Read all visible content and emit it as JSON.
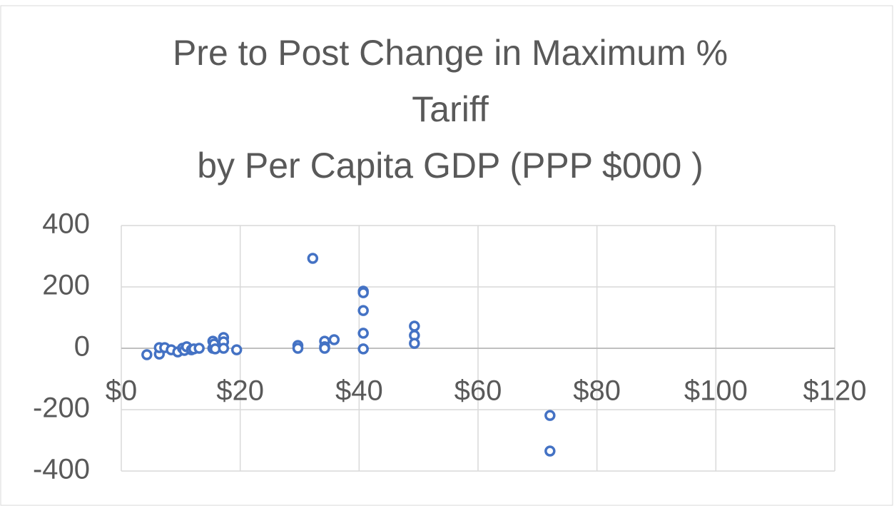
{
  "chart_data": {
    "type": "scatter",
    "title": [
      "Pre to Post Change in Maximum %",
      "Tariff",
      "by Per Capita GDP (PPP $000 )"
    ],
    "color": "#4472c4",
    "grid": true,
    "x": [
      4.3,
      6.4,
      6.4,
      7.3,
      8.4,
      9.5,
      10.3,
      10.6,
      11,
      11.8,
      12.2,
      13.1,
      15.4,
      15.4,
      15.6,
      15.8,
      17.2,
      17.2,
      17.2,
      19.4,
      29.7,
      29.7,
      32.2,
      34.2,
      34.2,
      34.2,
      35.8,
      40.7,
      40.7,
      40.7,
      40.7,
      40.7,
      49.3,
      49.3,
      49.3,
      72.1,
      72.1
    ],
    "values": [
      -21,
      -19,
      2,
      2,
      -5,
      -12,
      0,
      -7,
      5,
      -5,
      -2,
      0,
      23,
      0,
      14,
      -2,
      35,
      21,
      0,
      -5,
      9,
      0,
      293,
      23,
      5,
      0,
      28,
      186,
      181,
      123,
      49,
      -2,
      72,
      42,
      16,
      -219,
      -335
    ],
    "xlim": [
      0,
      120
    ],
    "xticks": [
      {
        "value": 0,
        "label": "$0"
      },
      {
        "value": 20,
        "label": "$20"
      },
      {
        "value": 40,
        "label": "$40"
      },
      {
        "value": 60,
        "label": "$60"
      },
      {
        "value": 80,
        "label": "$80"
      },
      {
        "value": 100,
        "label": "$100"
      },
      {
        "value": 120,
        "label": "$120"
      }
    ],
    "ylim": [
      -400,
      400
    ],
    "yticks": [
      400,
      200,
      0,
      -200,
      -400
    ]
  }
}
